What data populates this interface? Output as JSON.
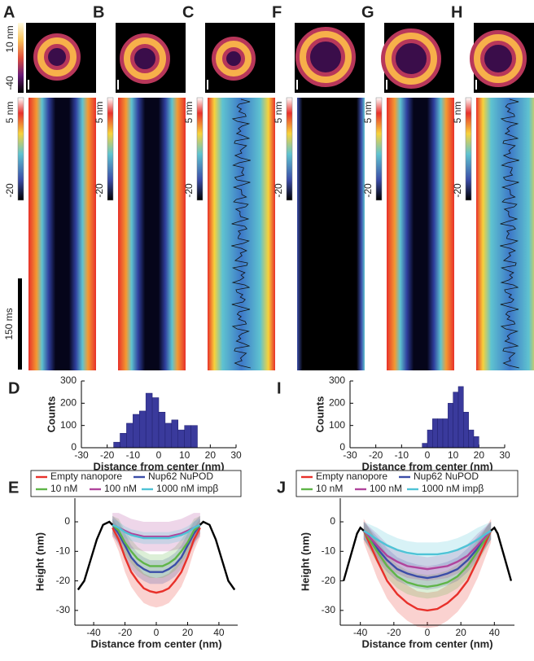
{
  "panels": [
    {
      "label": "A",
      "image_max_label": "10 nm",
      "image_min_label": "-40",
      "kymo_max_label": "5 nm",
      "kymo_min_label": "-20",
      "time_scale_label": "150 ms"
    },
    {
      "label": "B",
      "kymo_max_label": "5 nm",
      "kymo_min_label": "-20"
    },
    {
      "label": "C",
      "kymo_max_label": "5 nm",
      "kymo_min_label": "-20"
    },
    {
      "label": "F",
      "kymo_max_label": "5 nm",
      "kymo_min_label": "-20"
    },
    {
      "label": "G",
      "kymo_max_label": "5 nm",
      "kymo_min_label": "-20"
    },
    {
      "label": "H",
      "kymo_max_label": "5 nm",
      "kymo_min_label": "-20"
    }
  ],
  "chart_data": [
    {
      "type": "histogram",
      "panel": "D",
      "xlabel": "Distance from center (nm)",
      "ylabel": "Counts",
      "color": "#3a3a9c",
      "bins": [
        -17.5,
        -15,
        -12.5,
        -10,
        -7.5,
        -5,
        -2.5,
        0,
        2.5,
        5,
        7.5,
        10,
        12.5,
        15
      ],
      "values": [
        25,
        65,
        110,
        150,
        165,
        245,
        225,
        160,
        110,
        125,
        80,
        100,
        100
      ],
      "xlim": [
        -30,
        30
      ],
      "xticks": [
        -30,
        -20,
        -10,
        0,
        10,
        20,
        30
      ],
      "ylim": [
        0,
        300
      ],
      "yticks": [
        0,
        100,
        200,
        300
      ]
    },
    {
      "type": "histogram",
      "panel": "I",
      "xlabel": "Distance from center (nm)",
      "ylabel": "Counts",
      "color": "#3a3a9c",
      "bins": [
        -2,
        0,
        2,
        4,
        6,
        8,
        10,
        12,
        14,
        16,
        18,
        20
      ],
      "values": [
        20,
        80,
        130,
        130,
        130,
        200,
        250,
        275,
        160,
        80,
        50
      ],
      "xlim": [
        -30,
        30
      ],
      "xticks": [
        -30,
        -20,
        -10,
        0,
        10,
        20,
        30
      ],
      "ylim": [
        0,
        300
      ],
      "yticks": [
        0,
        100,
        200,
        300
      ]
    },
    {
      "type": "line",
      "panel": "E",
      "xlabel": "Distance from center (nm)",
      "ylabel": "Height (nm)",
      "xlim": [
        -52,
        52
      ],
      "xticks": [
        -40,
        -20,
        0,
        20,
        40
      ],
      "ylim": [
        -35,
        8
      ],
      "yticks": [
        0,
        -10,
        -20,
        -30
      ],
      "series": [
        {
          "name": "Empty nanopore",
          "color": "#e8302a",
          "x": [
            -28,
            -24,
            -20,
            -16,
            -12,
            -8,
            -4,
            0,
            4,
            8,
            12,
            16,
            20,
            24,
            28
          ],
          "values": [
            -2,
            -6,
            -12,
            -17,
            -20,
            -22.5,
            -23.5,
            -24,
            -23.5,
            -22.5,
            -20,
            -17,
            -12,
            -6,
            -2
          ],
          "error": [
            3,
            4,
            5,
            5,
            5,
            5,
            5,
            5,
            5,
            5,
            5,
            5,
            5,
            4,
            3
          ]
        },
        {
          "name": "Nup62 NuPOD",
          "color": "#3b4da8",
          "x": [
            -28,
            -24,
            -20,
            -16,
            -12,
            -8,
            -4,
            0,
            4,
            8,
            12,
            16,
            20,
            24,
            28
          ],
          "values": [
            -1,
            -4,
            -8,
            -12,
            -14.5,
            -16,
            -17,
            -17,
            -17,
            -16,
            -14.5,
            -12,
            -8,
            -4,
            -1
          ],
          "error": [
            3,
            4,
            4,
            4,
            4,
            4,
            4,
            4,
            4,
            4,
            4,
            4,
            4,
            4,
            3
          ]
        },
        {
          "name": "10 nM",
          "color": "#5fb548",
          "x": [
            -28,
            -24,
            -20,
            -16,
            -12,
            -8,
            -4,
            0,
            4,
            8,
            12,
            16,
            20,
            24,
            28
          ],
          "values": [
            -1,
            -3,
            -7,
            -10,
            -12.5,
            -14,
            -15,
            -15,
            -15,
            -14,
            -12.5,
            -10,
            -7,
            -3,
            -1
          ],
          "error": [
            3,
            4,
            4,
            4,
            4,
            4,
            4,
            4,
            4,
            4,
            4,
            4,
            4,
            4,
            3
          ]
        },
        {
          "name": "100 nM",
          "color": "#b0449c",
          "x": [
            -28,
            -24,
            -20,
            -16,
            -12,
            -8,
            -4,
            0,
            4,
            8,
            12,
            16,
            20,
            24,
            28
          ],
          "values": [
            -1,
            -2,
            -3,
            -4,
            -4.5,
            -5,
            -5,
            -5,
            -5,
            -5,
            -4.5,
            -4,
            -3,
            -2,
            -1
          ],
          "error": [
            4,
            5,
            5,
            5,
            5,
            5,
            5,
            5,
            5,
            5,
            5,
            5,
            5,
            5,
            4
          ]
        },
        {
          "name": "1000 nM impβ",
          "color": "#4fc3d6",
          "x": [
            -28,
            -24,
            -20,
            -16,
            -12,
            -8,
            -4,
            0,
            4,
            8,
            12,
            16,
            20,
            24,
            28
          ],
          "values": [
            -1,
            -2,
            -3.5,
            -4.5,
            -5,
            -5.5,
            -5.5,
            -5.5,
            -5.5,
            -5.5,
            -5,
            -4.5,
            -3.5,
            -2,
            -1
          ],
          "error": [
            2,
            2,
            2,
            2,
            2,
            2,
            2,
            2,
            2,
            2,
            2,
            2,
            2,
            2,
            2
          ]
        },
        {
          "color": "#000000",
          "x": [
            -50,
            -46,
            -42,
            -38,
            -34,
            -30,
            -28
          ],
          "values": [
            -23,
            -20,
            -13,
            -6,
            -1,
            0,
            -1
          ]
        },
        {
          "color": "#000000",
          "x": [
            28,
            30,
            34,
            38,
            42,
            46,
            50
          ],
          "values": [
            -1,
            0,
            -1,
            -6,
            -13,
            -20,
            -23
          ]
        }
      ]
    },
    {
      "type": "line",
      "panel": "J",
      "xlabel": "Distance from center (nm)",
      "ylabel": "Height (nm)",
      "xlim": [
        -52,
        52
      ],
      "xticks": [
        -40,
        -20,
        0,
        20,
        40
      ],
      "ylim": [
        -35,
        8
      ],
      "yticks": [
        0,
        -10,
        -20,
        -30
      ],
      "series": [
        {
          "name": "Empty nanopore",
          "color": "#e8302a",
          "x": [
            -38,
            -30,
            -24,
            -18,
            -12,
            -6,
            0,
            6,
            12,
            18,
            24,
            30,
            38
          ],
          "values": [
            -3,
            -13,
            -20,
            -24.5,
            -27.5,
            -29.5,
            -30,
            -29.5,
            -27.5,
            -24.5,
            -20,
            -13,
            -3
          ],
          "error": [
            4,
            6,
            6,
            6,
            6,
            6,
            6,
            6,
            6,
            6,
            6,
            6,
            4
          ]
        },
        {
          "name": "Nup62 NuPOD",
          "color": "#3b4da8",
          "x": [
            -38,
            -30,
            -24,
            -18,
            -12,
            -6,
            0,
            6,
            12,
            18,
            24,
            30,
            38
          ],
          "values": [
            -3,
            -9,
            -13,
            -16,
            -17.5,
            -18.5,
            -19,
            -18.5,
            -17.5,
            -16,
            -13,
            -9,
            -3
          ],
          "error": [
            3,
            4,
            4,
            4,
            4,
            4,
            4,
            4,
            4,
            4,
            4,
            4,
            3
          ]
        },
        {
          "name": "10 nM",
          "color": "#5fb548",
          "x": [
            -38,
            -30,
            -24,
            -18,
            -12,
            -6,
            0,
            6,
            12,
            18,
            24,
            30,
            38
          ],
          "values": [
            -3,
            -10,
            -15,
            -18.5,
            -20.5,
            -21.5,
            -22,
            -21.5,
            -20.5,
            -18.5,
            -15,
            -10,
            -3
          ],
          "error": [
            3,
            4,
            4,
            4,
            4,
            4,
            4,
            4,
            4,
            4,
            4,
            4,
            3
          ]
        },
        {
          "name": "100 nM",
          "color": "#b0449c",
          "x": [
            -38,
            -30,
            -24,
            -18,
            -12,
            -6,
            0,
            6,
            12,
            18,
            24,
            30,
            38
          ],
          "values": [
            -3,
            -8,
            -11.5,
            -13.5,
            -15,
            -15.5,
            -16,
            -15.5,
            -15,
            -13.5,
            -11.5,
            -8,
            -3
          ],
          "error": [
            3,
            4,
            4,
            4,
            4,
            4,
            4,
            4,
            4,
            4,
            4,
            4,
            3
          ]
        },
        {
          "name": "1000 nM impβ",
          "color": "#4fc3d6",
          "x": [
            -38,
            -30,
            -24,
            -18,
            -12,
            -6,
            0,
            6,
            12,
            18,
            24,
            30,
            38
          ],
          "values": [
            -3,
            -6,
            -8,
            -9.5,
            -10.5,
            -11,
            -11,
            -11,
            -10.5,
            -9.5,
            -8,
            -6,
            -3
          ],
          "error": [
            3,
            4,
            4,
            4,
            4,
            4,
            4,
            4,
            4,
            4,
            4,
            4,
            3
          ]
        },
        {
          "color": "#000000",
          "x": [
            -50,
            -46,
            -42,
            -40,
            -38
          ],
          "values": [
            -20,
            -12,
            -4,
            -2,
            -3
          ]
        },
        {
          "color": "#000000",
          "x": [
            38,
            40,
            42,
            46,
            50
          ],
          "values": [
            -3,
            -2,
            -4,
            -12,
            -20
          ]
        }
      ]
    }
  ]
}
